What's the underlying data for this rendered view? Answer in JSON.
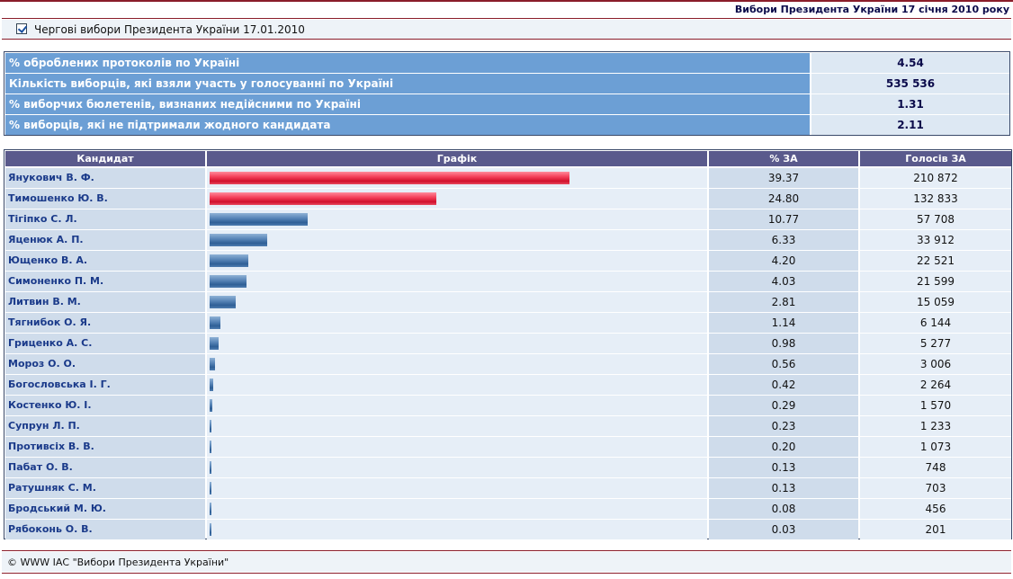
{
  "header": {
    "title": "Вибори Президента України 17 січня 2010 року"
  },
  "election_selector": {
    "label": "Чергові вибори Президента України 17.01.2010",
    "checked": true
  },
  "summary": [
    {
      "label": "% оброблених протоколів по Україні",
      "value": "4.54"
    },
    {
      "label": "Кількість виборців, які взяли участь у голосуванні по Україні",
      "value": "535 536"
    },
    {
      "label": "% виборчих бюлетенів, визнаних недійсними по Україні",
      "value": "1.31"
    },
    {
      "label": "% виборців, які не підтримали жодного кандидата",
      "value": "2.11"
    }
  ],
  "table": {
    "headers": {
      "candidate": "Кандидат",
      "graph": "Графік",
      "percent": "% ЗА",
      "votes": "Голосів ЗА"
    }
  },
  "colors": {
    "leader_bar": "#e8203c",
    "other_bar": "#3a6aa4",
    "header_bg": "#5a5a8c",
    "summary_label_bg": "#6c9fd5"
  },
  "chart_data": {
    "type": "bar",
    "title": "Графік",
    "categories": [
      "Янукович В. Ф.",
      "Тимошенко Ю. В.",
      "Тігіпко С. Л.",
      "Яценюк А. П.",
      "Ющенко В. А.",
      "Симоненко П. М.",
      "Литвин В. М.",
      "Тягнибок О. Я.",
      "Гриценко А. С.",
      "Мороз О. О.",
      "Богословська І. Г.",
      "Костенко Ю. І.",
      "Супрун Л. П.",
      "Противсіх В. В.",
      "Пабат О. В.",
      "Ратушняк С. М.",
      "Бродський М. Ю.",
      "Рябоконь О. В."
    ],
    "series": [
      {
        "name": "% ЗА",
        "values": [
          39.37,
          24.8,
          10.77,
          6.33,
          4.2,
          4.03,
          2.81,
          1.14,
          0.98,
          0.56,
          0.42,
          0.29,
          0.23,
          0.2,
          0.13,
          0.13,
          0.08,
          0.03
        ],
        "labels": [
          "39.37",
          "24.80",
          "10.77",
          "6.33",
          "4.20",
          "4.03",
          "2.81",
          "1.14",
          "0.98",
          "0.56",
          "0.42",
          "0.29",
          "0.23",
          "0.20",
          "0.13",
          "0.13",
          "0.08",
          "0.03"
        ]
      },
      {
        "name": "Голосів ЗА",
        "values": [
          210872,
          132833,
          57708,
          33912,
          22521,
          21599,
          15059,
          6144,
          5277,
          3006,
          2264,
          1570,
          1233,
          1073,
          748,
          703,
          456,
          201
        ],
        "labels": [
          "210 872",
          "132 833",
          "57 708",
          "33 912",
          "22 521",
          "21 599",
          "15 059",
          "6 144",
          "5 277",
          "3 006",
          "2 264",
          "1 570",
          "1 233",
          "1 073",
          "748",
          "703",
          "456",
          "201"
        ]
      }
    ],
    "highlighted": [
      0,
      1
    ],
    "xlim": [
      0,
      100
    ],
    "orientation": "horizontal"
  },
  "footer": {
    "text": "© WWW ІАС \"Вибори Президента України\""
  }
}
